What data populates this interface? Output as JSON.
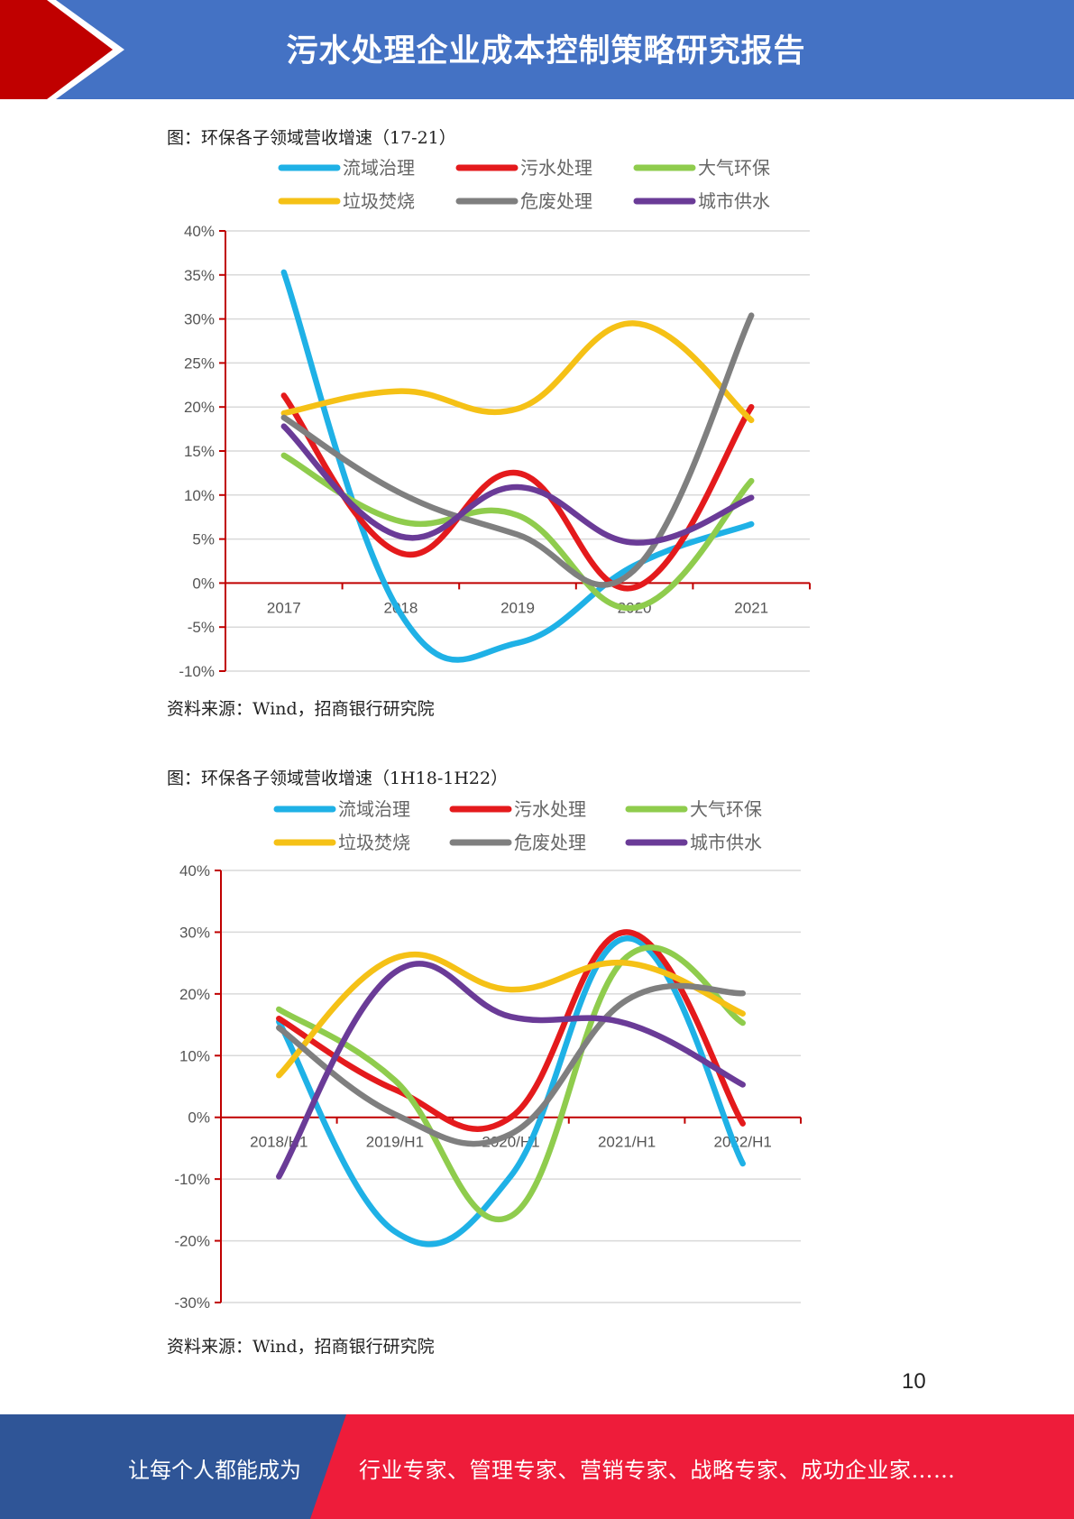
{
  "header": {
    "title": "污水处理企业成本控制策略研究报告"
  },
  "colors": {
    "header_blue": "#4472c4",
    "header_red": "#c00000",
    "footer_blue": "#2f5597",
    "footer_red": "#ee1c3a",
    "axis": "#c00000",
    "grid": "#d9d9d9"
  },
  "figures": [
    {
      "caption": "图：环保各子领域营收增速（17-21）",
      "source": "资料来源：Wind，招商银行研究院"
    },
    {
      "caption": "图：环保各子领域营收增速（1H18-1H22）",
      "source": "资料来源：Wind，招商银行研究院"
    }
  ],
  "chart_data": [
    {
      "type": "line",
      "smooth": true,
      "categories": [
        "2017",
        "2018",
        "2019",
        "2020",
        "2021"
      ],
      "ylim": [
        -10,
        40
      ],
      "yticks": [
        -10,
        -5,
        0,
        5,
        10,
        15,
        20,
        25,
        30,
        35,
        40
      ],
      "ytick_labels": [
        "-10%",
        "-5%",
        "0%",
        "5%",
        "10%",
        "15%",
        "20%",
        "25%",
        "30%",
        "35%",
        "40%"
      ],
      "grid": true,
      "legend_position": "top",
      "series": [
        {
          "name": "流域治理",
          "color": "#1fb1e6",
          "values": [
            35.3,
            -3.5,
            -6.8,
            2.0,
            6.7
          ]
        },
        {
          "name": "污水处理",
          "color": "#e41a1c",
          "values": [
            21.3,
            3.4,
            12.5,
            -0.5,
            20.0
          ]
        },
        {
          "name": "大气环保",
          "color": "#8fcc4d",
          "values": [
            14.5,
            7.0,
            7.7,
            -2.8,
            11.6
          ]
        },
        {
          "name": "垃圾焚烧",
          "color": "#f5c116",
          "values": [
            19.3,
            21.8,
            19.8,
            29.5,
            18.5
          ]
        },
        {
          "name": "危废处理",
          "color": "#7f7f7f",
          "values": [
            18.8,
            10.2,
            5.5,
            1.5,
            30.4
          ]
        },
        {
          "name": "城市供水",
          "color": "#6a3b97",
          "values": [
            17.8,
            5.3,
            10.9,
            4.6,
            9.7
          ]
        }
      ]
    },
    {
      "type": "line",
      "smooth": true,
      "categories": [
        "2018/H1",
        "2019/H1",
        "2020/H1",
        "2021/H1",
        "2022/H1"
      ],
      "ylim": [
        -30,
        40
      ],
      "yticks": [
        -30,
        -20,
        -10,
        0,
        10,
        20,
        30,
        40
      ],
      "ytick_labels": [
        "-30%",
        "-20%",
        "-10%",
        "0%",
        "10%",
        "20%",
        "30%",
        "40%"
      ],
      "grid": true,
      "legend_position": "top",
      "series": [
        {
          "name": "流域治理",
          "color": "#1fb1e6",
          "values": [
            15.5,
            -18.5,
            -9.5,
            29.0,
            -7.5
          ]
        },
        {
          "name": "污水处理",
          "color": "#e41a1c",
          "values": [
            16.0,
            4.5,
            0.0,
            30.0,
            -1.0
          ]
        },
        {
          "name": "大气环保",
          "color": "#8fcc4d",
          "values": [
            17.5,
            6.0,
            -16.0,
            26.0,
            15.3
          ]
        },
        {
          "name": "垃圾焚烧",
          "color": "#f5c116",
          "values": [
            6.8,
            25.8,
            20.7,
            25.0,
            16.8
          ]
        },
        {
          "name": "危废处理",
          "color": "#7f7f7f",
          "values": [
            14.5,
            0.5,
            -2.7,
            19.0,
            20.1
          ]
        },
        {
          "name": "城市供水",
          "color": "#6a3b97",
          "values": [
            -9.6,
            23.5,
            16.3,
            15.2,
            5.3
          ]
        }
      ]
    }
  ],
  "page_number": "10",
  "footer": {
    "left_text": "让每个人都能成为",
    "right_text": "行业专家、管理专家、营销专家、战略专家、成功企业家……"
  }
}
